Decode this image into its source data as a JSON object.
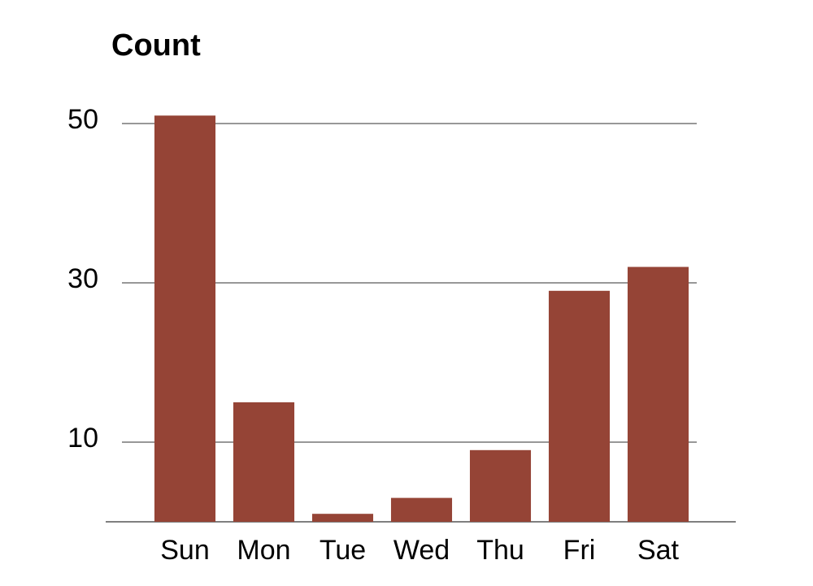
{
  "chart_data": {
    "type": "bar",
    "title": "Count",
    "categories": [
      "Sun",
      "Mon",
      "Tue",
      "Wed",
      "Thu",
      "Fri",
      "Sat"
    ],
    "values": [
      51,
      15,
      1,
      3,
      9,
      29,
      32
    ],
    "color": "#954436",
    "ylim": [
      0,
      52
    ],
    "yticks": [
      10,
      30,
      50
    ],
    "grid": true
  }
}
